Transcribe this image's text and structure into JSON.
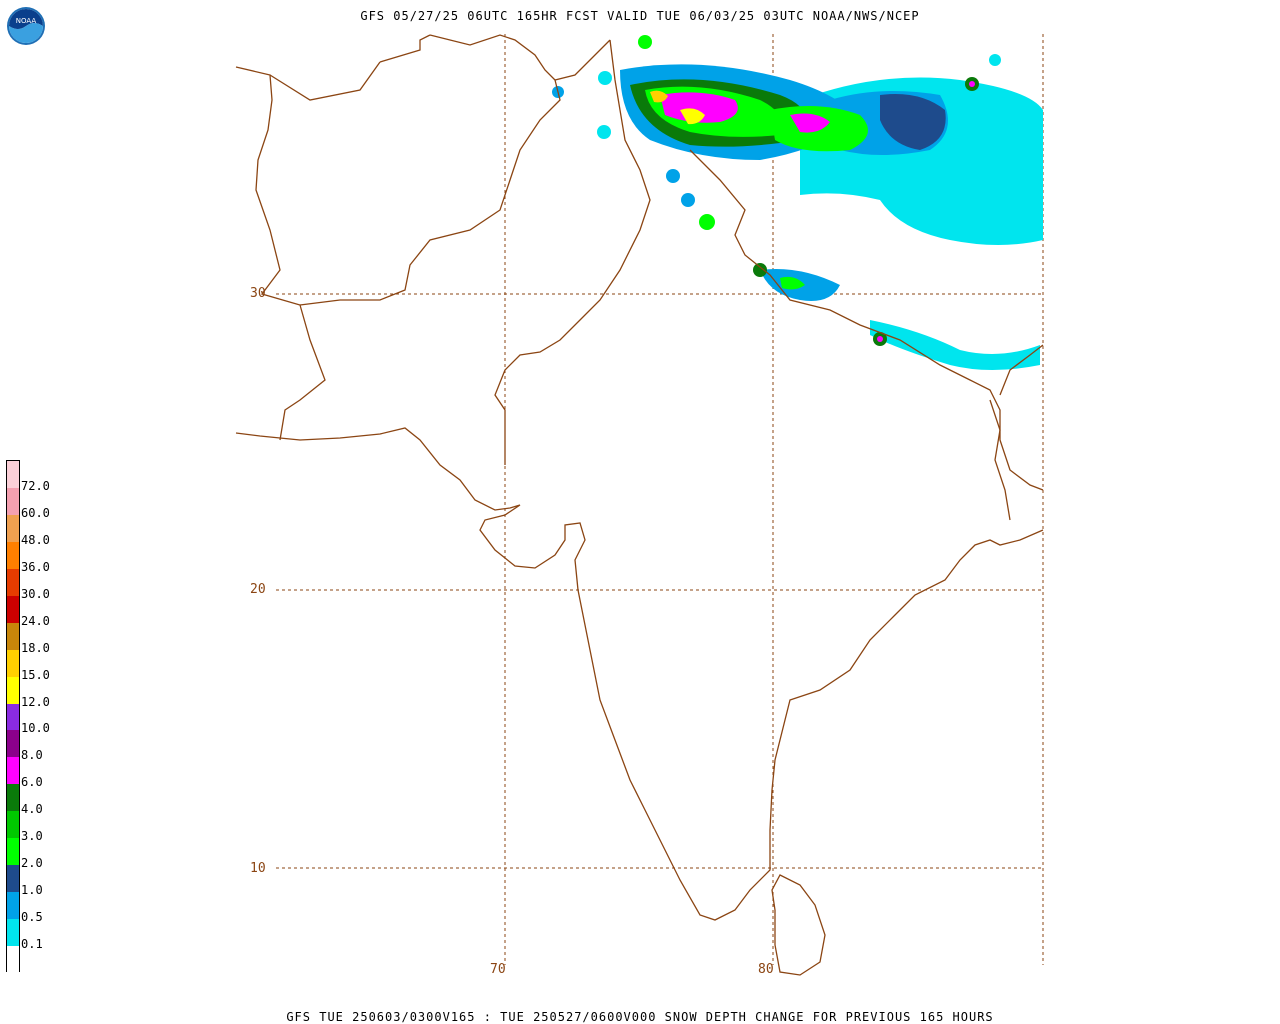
{
  "header": {
    "title": "GFS 05/27/25 06UTC 165HR FCST VALID TUE 06/03/25 03UTC NOAA/NWS/NCEP",
    "logo_text": "NOAA"
  },
  "footer": {
    "caption": "GFS TUE 250603/0300V165 : TUE 250527/0600V000 SNOW DEPTH CHANGE FOR PREVIOUS 165 HOURS"
  },
  "grid_labels": {
    "lat_30": "30",
    "lat_20": "20",
    "lat_10": "10",
    "lon_70": "70",
    "lon_80": "80"
  },
  "legend": {
    "items": [
      {
        "label": "",
        "color": "#ffffff"
      },
      {
        "label": "0.1",
        "color": "#00e5ee"
      },
      {
        "label": "0.5",
        "color": "#00a2e8"
      },
      {
        "label": "1.0",
        "color": "#1e4b8c"
      },
      {
        "label": "2.0",
        "color": "#00ff00"
      },
      {
        "label": "3.0",
        "color": "#00c800"
      },
      {
        "label": "4.0",
        "color": "#0a7a0a"
      },
      {
        "label": "6.0",
        "color": "#ff00ff"
      },
      {
        "label": "8.0",
        "color": "#8b008b"
      },
      {
        "label": "10.0",
        "color": "#8a2be2"
      },
      {
        "label": "12.0",
        "color": "#ffff00"
      },
      {
        "label": "15.0",
        "color": "#ffd000"
      },
      {
        "label": "18.0",
        "color": "#c8860a"
      },
      {
        "label": "24.0",
        "color": "#cc0000"
      },
      {
        "label": "30.0",
        "color": "#e63c00"
      },
      {
        "label": "36.0",
        "color": "#ff7f00"
      },
      {
        "label": "48.0",
        "color": "#f0a050"
      },
      {
        "label": "60.0",
        "color": "#f4a0b0"
      },
      {
        "label": "72.0",
        "color": "#fbd0d8"
      }
    ]
  },
  "colors": {
    "boundary": "#8b4513",
    "grid": "#8b4513"
  }
}
